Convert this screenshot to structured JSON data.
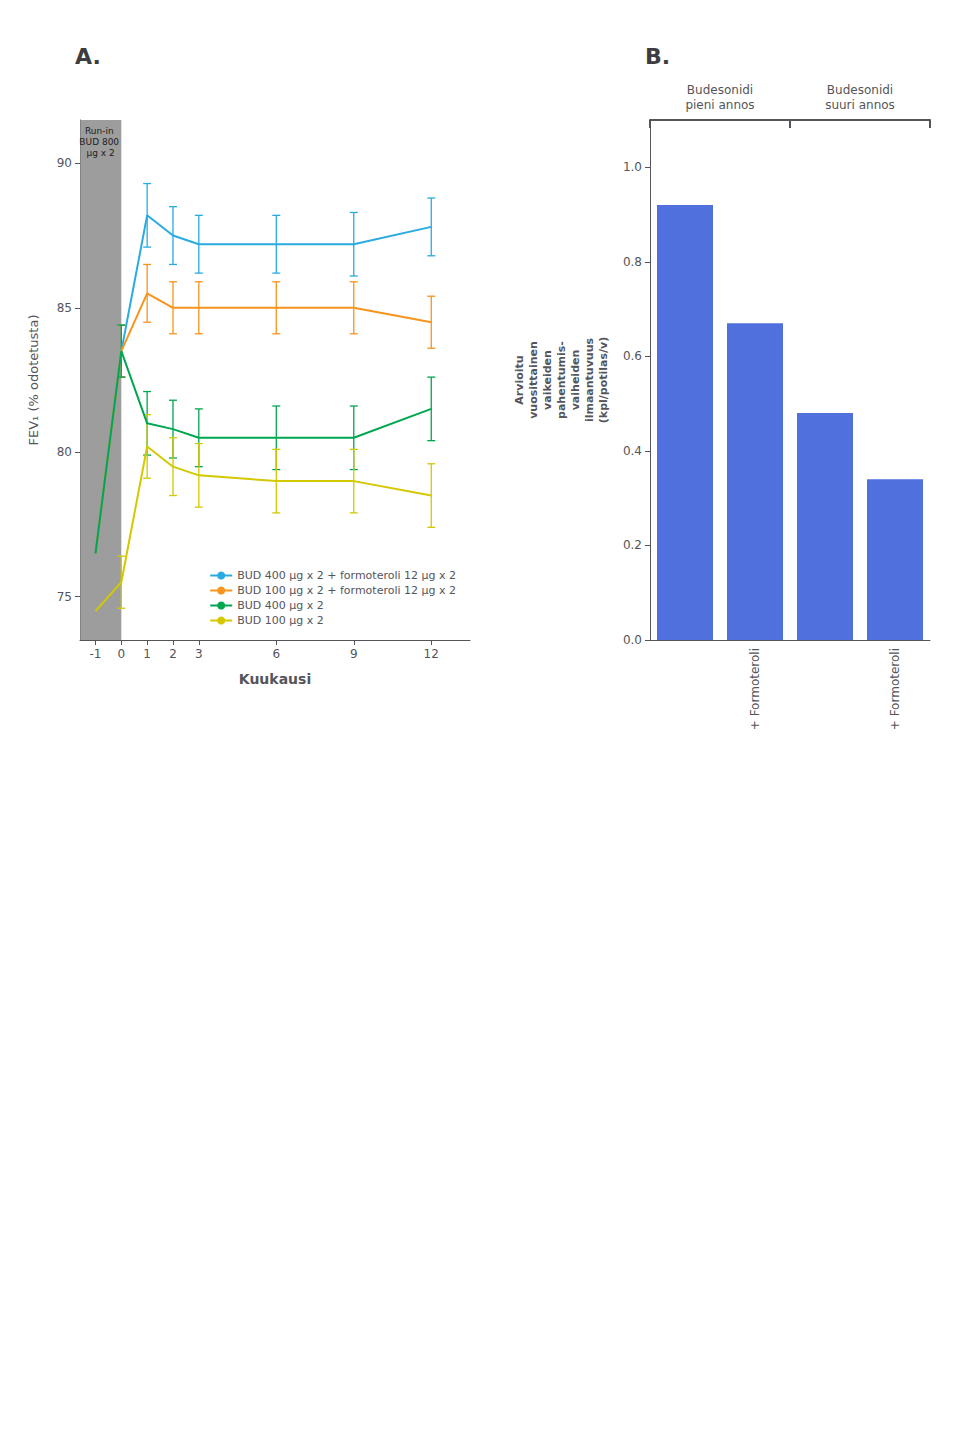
{
  "chart_data": [
    {
      "type": "line",
      "title": "A.",
      "xlabel": "Kuukausi",
      "ylabel": "FEV₁ (% odotetusta)",
      "x": [
        -1,
        0,
        1,
        2,
        3,
        6,
        9,
        12
      ],
      "xlim": [
        -1.6,
        13.5
      ],
      "xticks": [
        -1,
        0,
        1,
        2,
        3,
        6,
        9,
        12
      ],
      "ylim": [
        73.5,
        91.5
      ],
      "yticks": [
        75,
        80,
        85,
        90
      ],
      "grid": false,
      "legend": "lower right",
      "annotations": [
        {
          "text": "Run-in BUD 800 μg x 2",
          "x": [
            -1.6,
            0
          ]
        }
      ],
      "series": [
        {
          "name": "BUD 400 μg x 2 + formoteroli 12 μg x 2",
          "color": "#29ABE2",
          "values": [
            76.5,
            83.5,
            88.2,
            87.5,
            87.2,
            87.2,
            87.2,
            87.8
          ],
          "yerr": [
            null,
            0.9,
            1.1,
            1.0,
            1.0,
            1.0,
            1.1,
            1.0
          ]
        },
        {
          "name": "BUD 100 μg x 2 + formoteroli 12 μg x 2",
          "color": "#F7941D",
          "values": [
            76.5,
            83.5,
            85.5,
            85.0,
            85.0,
            85.0,
            85.0,
            84.5
          ],
          "yerr": [
            null,
            0.9,
            1.0,
            0.9,
            0.9,
            0.9,
            0.9,
            0.9
          ]
        },
        {
          "name": "BUD 400 μg x 2",
          "color": "#00A650",
          "values": [
            76.5,
            83.5,
            81.0,
            80.8,
            80.5,
            80.5,
            80.5,
            81.5
          ],
          "yerr": [
            null,
            0.9,
            1.1,
            1.0,
            1.0,
            1.1,
            1.1,
            1.1
          ]
        },
        {
          "name": "BUD 100 μg x 2",
          "color": "#D4C800",
          "values": [
            74.5,
            75.5,
            80.2,
            79.5,
            79.2,
            79.0,
            79.0,
            78.5
          ],
          "yerr": [
            null,
            0.9,
            1.1,
            1.0,
            1.1,
            1.1,
            1.1,
            1.1
          ]
        }
      ]
    },
    {
      "type": "bar",
      "title": "B.",
      "ylabel": "Arvioitu\nvuosittainen\nvaikeiden\npahentumis-\nvaiheiden\nilmaantuvuus\n(kpl/potilas/v)",
      "categories": [
        null,
        "+ Formoteroli",
        null,
        "+ Formoteroli"
      ],
      "values": [
        0.92,
        0.67,
        0.48,
        0.34
      ],
      "ylim": [
        0,
        1.1
      ],
      "yticks": [
        {
          "value": 0,
          "label": "0.0"
        },
        0.2,
        0.4,
        0.6,
        0.8,
        {
          "value": 1,
          "label": "1.0"
        }
      ],
      "grid": false,
      "groups": [
        {
          "label": "Budesonidi\npieni annos",
          "count": 2
        },
        {
          "label": "Budesonidi\nsuuri annos",
          "count": 2
        }
      ]
    }
  ]
}
